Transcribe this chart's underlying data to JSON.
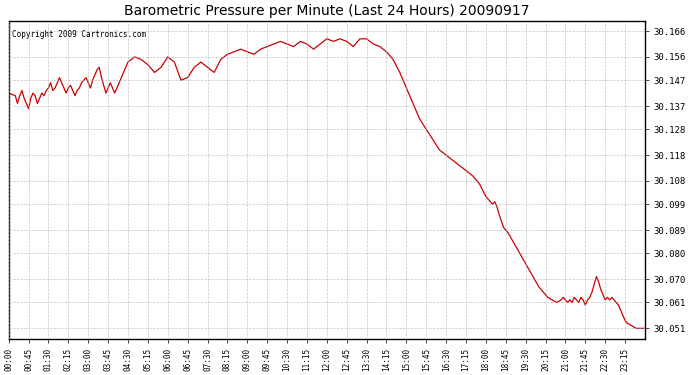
{
  "title": "Barometric Pressure per Minute (Last 24 Hours) 20090917",
  "copyright": "Copyright 2009 Cartronics.com",
  "line_color": "#cc0000",
  "background_color": "#ffffff",
  "grid_color": "#aaaaaa",
  "ylim": [
    30.047,
    30.17
  ],
  "yticks": [
    30.051,
    30.061,
    30.07,
    30.08,
    30.089,
    30.099,
    30.108,
    30.118,
    30.128,
    30.137,
    30.147,
    30.156,
    30.166
  ],
  "xtick_labels": [
    "00:00",
    "00:45",
    "01:30",
    "02:15",
    "03:00",
    "03:45",
    "04:30",
    "05:15",
    "06:00",
    "06:45",
    "07:30",
    "08:15",
    "09:00",
    "09:45",
    "10:30",
    "11:15",
    "12:00",
    "12:45",
    "13:30",
    "14:15",
    "15:00",
    "15:45",
    "16:30",
    "17:15",
    "18:00",
    "18:45",
    "19:30",
    "20:15",
    "21:00",
    "21:45",
    "22:30",
    "23:15"
  ],
  "pressure_data": [
    [
      0,
      30.142
    ],
    [
      15,
      30.141
    ],
    [
      20,
      30.138
    ],
    [
      25,
      30.141
    ],
    [
      30,
      30.143
    ],
    [
      35,
      30.14
    ],
    [
      40,
      30.138
    ],
    [
      45,
      30.136
    ],
    [
      50,
      30.14
    ],
    [
      55,
      30.142
    ],
    [
      60,
      30.141
    ],
    [
      65,
      30.138
    ],
    [
      70,
      30.14
    ],
    [
      75,
      30.142
    ],
    [
      80,
      30.141
    ],
    [
      85,
      30.143
    ],
    [
      90,
      30.144
    ],
    [
      95,
      30.146
    ],
    [
      100,
      30.143
    ],
    [
      105,
      30.144
    ],
    [
      110,
      30.146
    ],
    [
      115,
      30.148
    ],
    [
      120,
      30.146
    ],
    [
      125,
      30.144
    ],
    [
      130,
      30.142
    ],
    [
      135,
      30.144
    ],
    [
      140,
      30.145
    ],
    [
      145,
      30.143
    ],
    [
      150,
      30.141
    ],
    [
      155,
      30.143
    ],
    [
      160,
      30.144
    ],
    [
      165,
      30.146
    ],
    [
      170,
      30.147
    ],
    [
      175,
      30.148
    ],
    [
      180,
      30.146
    ],
    [
      185,
      30.144
    ],
    [
      190,
      30.147
    ],
    [
      195,
      30.149
    ],
    [
      200,
      30.151
    ],
    [
      205,
      30.152
    ],
    [
      210,
      30.148
    ],
    [
      215,
      30.145
    ],
    [
      220,
      30.142
    ],
    [
      225,
      30.144
    ],
    [
      230,
      30.146
    ],
    [
      235,
      30.144
    ],
    [
      240,
      30.142
    ],
    [
      255,
      30.148
    ],
    [
      270,
      30.154
    ],
    [
      285,
      30.156
    ],
    [
      300,
      30.155
    ],
    [
      315,
      30.153
    ],
    [
      330,
      30.15
    ],
    [
      345,
      30.152
    ],
    [
      360,
      30.156
    ],
    [
      375,
      30.154
    ],
    [
      390,
      30.147
    ],
    [
      405,
      30.148
    ],
    [
      420,
      30.152
    ],
    [
      435,
      30.154
    ],
    [
      450,
      30.152
    ],
    [
      465,
      30.15
    ],
    [
      480,
      30.155
    ],
    [
      495,
      30.157
    ],
    [
      510,
      30.158
    ],
    [
      525,
      30.159
    ],
    [
      540,
      30.158
    ],
    [
      555,
      30.157
    ],
    [
      570,
      30.159
    ],
    [
      585,
      30.16
    ],
    [
      600,
      30.161
    ],
    [
      615,
      30.162
    ],
    [
      630,
      30.161
    ],
    [
      645,
      30.16
    ],
    [
      660,
      30.162
    ],
    [
      675,
      30.161
    ],
    [
      690,
      30.159
    ],
    [
      705,
      30.161
    ],
    [
      720,
      30.163
    ],
    [
      735,
      30.162
    ],
    [
      750,
      30.163
    ],
    [
      765,
      30.162
    ],
    [
      780,
      30.16
    ],
    [
      795,
      30.163
    ],
    [
      810,
      30.163
    ],
    [
      825,
      30.161
    ],
    [
      840,
      30.16
    ],
    [
      855,
      30.158
    ],
    [
      870,
      30.155
    ],
    [
      885,
      30.15
    ],
    [
      900,
      30.144
    ],
    [
      915,
      30.138
    ],
    [
      930,
      30.132
    ],
    [
      945,
      30.128
    ],
    [
      960,
      30.124
    ],
    [
      975,
      30.12
    ],
    [
      990,
      30.118
    ],
    [
      1005,
      30.116
    ],
    [
      1020,
      30.114
    ],
    [
      1035,
      30.112
    ],
    [
      1050,
      30.11
    ],
    [
      1065,
      30.107
    ],
    [
      1080,
      30.102
    ],
    [
      1095,
      30.099
    ],
    [
      1100,
      30.1
    ],
    [
      1105,
      30.098
    ],
    [
      1110,
      30.095
    ],
    [
      1120,
      30.09
    ],
    [
      1130,
      30.088
    ],
    [
      1140,
      30.085
    ],
    [
      1150,
      30.082
    ],
    [
      1160,
      30.079
    ],
    [
      1170,
      30.076
    ],
    [
      1180,
      30.073
    ],
    [
      1190,
      30.07
    ],
    [
      1200,
      30.067
    ],
    [
      1210,
      30.065
    ],
    [
      1220,
      30.063
    ],
    [
      1230,
      30.062
    ],
    [
      1240,
      30.061
    ],
    [
      1250,
      30.062
    ],
    [
      1255,
      30.063
    ],
    [
      1260,
      30.062
    ],
    [
      1265,
      30.061
    ],
    [
      1270,
      30.062
    ],
    [
      1275,
      30.061
    ],
    [
      1280,
      30.063
    ],
    [
      1285,
      30.062
    ],
    [
      1290,
      30.061
    ],
    [
      1295,
      30.063
    ],
    [
      1300,
      30.062
    ],
    [
      1305,
      30.06
    ],
    [
      1310,
      30.062
    ],
    [
      1315,
      30.063
    ],
    [
      1320,
      30.065
    ],
    [
      1325,
      30.068
    ],
    [
      1330,
      30.071
    ],
    [
      1335,
      30.069
    ],
    [
      1340,
      30.066
    ],
    [
      1345,
      30.064
    ],
    [
      1350,
      30.062
    ],
    [
      1355,
      30.063
    ],
    [
      1360,
      30.062
    ],
    [
      1365,
      30.063
    ],
    [
      1370,
      30.062
    ],
    [
      1375,
      30.061
    ],
    [
      1380,
      30.06
    ],
    [
      1385,
      30.058
    ],
    [
      1390,
      30.056
    ],
    [
      1395,
      30.054
    ],
    [
      1400,
      30.053
    ],
    [
      1410,
      30.052
    ],
    [
      1420,
      30.051
    ],
    [
      1430,
      30.051
    ],
    [
      1439,
      30.051
    ]
  ]
}
